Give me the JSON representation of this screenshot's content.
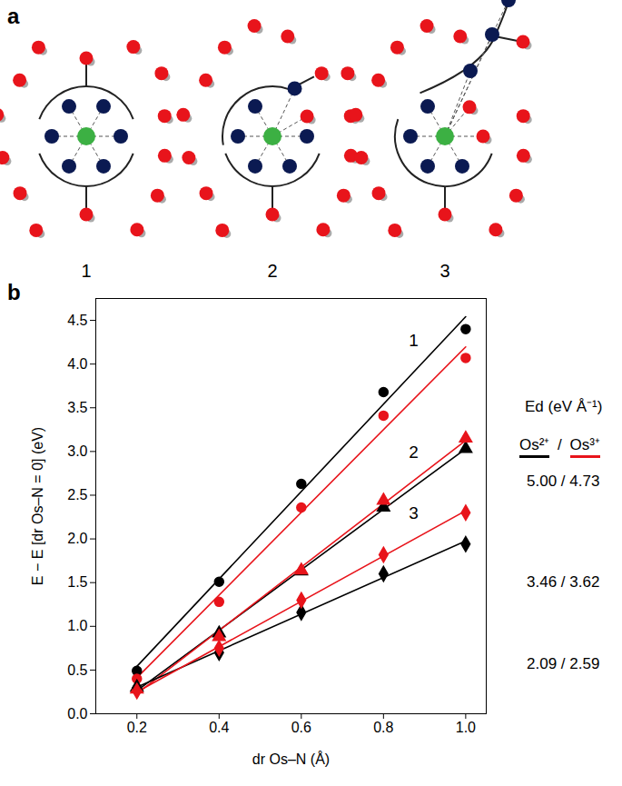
{
  "diagram": {
    "panel_label": "a",
    "labels": [
      "1",
      "2",
      "3"
    ]
  },
  "chart_data": {
    "panel_label": "b",
    "type": "scatter",
    "x_label": "dr Os–N (Å)",
    "y_label": "E − E [dr Os–N = 0] (eV)",
    "xlim": [
      0.1,
      1.05
    ],
    "xticks": [
      0.2,
      0.4,
      0.6,
      0.8,
      {
        "value": 1,
        "label": "1.0"
      }
    ],
    "ylim": [
      0,
      4.75
    ],
    "yticks": [
      {
        "value": 0,
        "label": "0.0"
      },
      0.5,
      {
        "value": 1,
        "label": "1.0"
      },
      1.5,
      {
        "value": 2,
        "label": "2.0"
      },
      2.5,
      {
        "value": 3,
        "label": "3.0"
      },
      3.5,
      {
        "value": 4,
        "label": "4.0"
      },
      4.5
    ],
    "x": [
      0.2,
      0.4,
      0.6,
      0.8,
      1.0
    ],
    "series": [
      {
        "name": "Os²⁺",
        "curve": "1",
        "color": "#000000",
        "marker": "circle",
        "values": [
          0.49,
          1.51,
          2.63,
          3.68,
          4.4
        ],
        "fit": {
          "slope": 5.0,
          "intercept": -0.458
        }
      },
      {
        "name": "Os³⁺",
        "curve": "1",
        "color": "#e8141b",
        "marker": "circle",
        "values": [
          0.4,
          1.28,
          2.36,
          3.41,
          4.07
        ],
        "fit": {
          "slope": 4.73,
          "intercept": -0.534
        }
      },
      {
        "name": "Os²⁺",
        "curve": "2",
        "color": "#000000",
        "marker": "triangle",
        "values": [
          0.3,
          0.92,
          1.63,
          2.36,
          3.03
        ],
        "fit": {
          "slope": 3.46,
          "intercept": -0.428
        }
      },
      {
        "name": "Os³⁺",
        "curve": "2",
        "color": "#e8141b",
        "marker": "triangle",
        "values": [
          0.28,
          0.88,
          1.64,
          2.44,
          3.15
        ],
        "fit": {
          "slope": 3.62,
          "intercept": -0.494
        }
      },
      {
        "name": "Os²⁺",
        "curve": "3",
        "color": "#000000",
        "marker": "diamond",
        "values": [
          0.3,
          0.7,
          1.16,
          1.6,
          1.94
        ],
        "fit": {
          "slope": 2.09,
          "intercept": -0.114
        }
      },
      {
        "name": "Os³⁺",
        "curve": "3",
        "color": "#e8141b",
        "marker": "diamond",
        "values": [
          0.26,
          0.75,
          1.3,
          1.82,
          2.3
        ],
        "fit": {
          "slope": 2.59,
          "intercept": -0.268
        }
      }
    ],
    "legend": "right",
    "legend_title": "Ed (eV Å⁻¹)",
    "legend_separator": "/",
    "annotations": [
      "5.00 / 4.73",
      "3.46 / 3.62",
      "2.09 / 2.59"
    ]
  }
}
